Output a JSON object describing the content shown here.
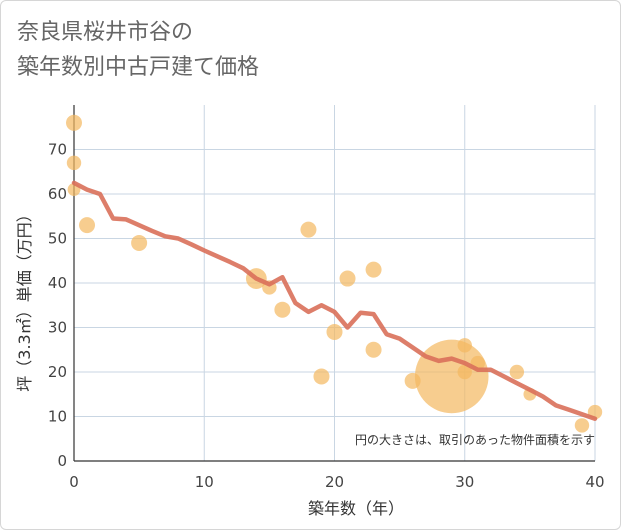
{
  "title_line1": "奈良県桜井市谷の",
  "title_line2": "築年数別中古戸建て価格",
  "chart_data": {
    "type": "scatter",
    "xlabel": "築年数（年）",
    "ylabel": "坪（3.3㎡）単価（万円）",
    "xlim": [
      0,
      40
    ],
    "ylim": [
      0,
      80
    ],
    "xticks": [
      "0",
      "10",
      "20",
      "30",
      "40"
    ],
    "yticks": [
      "0",
      "10",
      "20",
      "30",
      "40",
      "50",
      "60",
      "70"
    ],
    "grid": true,
    "note": "円の大きさは、取引のあった物件面積を示す",
    "colors": {
      "point": "#f4b860",
      "line": "#d9705a",
      "grid": "#c9d6e3"
    },
    "points": [
      {
        "x": 0,
        "y": 76,
        "size": 1.0
      },
      {
        "x": 0,
        "y": 67,
        "size": 0.9
      },
      {
        "x": 0,
        "y": 61,
        "size": 0.8
      },
      {
        "x": 1,
        "y": 53,
        "size": 1.0
      },
      {
        "x": 5,
        "y": 49,
        "size": 1.0
      },
      {
        "x": 14,
        "y": 41,
        "size": 1.3
      },
      {
        "x": 15,
        "y": 39,
        "size": 0.9
      },
      {
        "x": 16,
        "y": 34,
        "size": 1.0
      },
      {
        "x": 18,
        "y": 52,
        "size": 1.0
      },
      {
        "x": 19,
        "y": 19,
        "size": 1.0
      },
      {
        "x": 20,
        "y": 29,
        "size": 1.0
      },
      {
        "x": 21,
        "y": 41,
        "size": 1.0
      },
      {
        "x": 23,
        "y": 43,
        "size": 1.0
      },
      {
        "x": 23,
        "y": 25,
        "size": 1.0
      },
      {
        "x": 26,
        "y": 18,
        "size": 1.0
      },
      {
        "x": 29,
        "y": 19,
        "size": 4.6
      },
      {
        "x": 30,
        "y": 26,
        "size": 0.9
      },
      {
        "x": 30,
        "y": 20,
        "size": 0.9
      },
      {
        "x": 31,
        "y": 22,
        "size": 0.9
      },
      {
        "x": 34,
        "y": 20,
        "size": 0.9
      },
      {
        "x": 35,
        "y": 15,
        "size": 0.8
      },
      {
        "x": 39,
        "y": 8,
        "size": 0.9
      },
      {
        "x": 40,
        "y": 11,
        "size": 0.9
      }
    ],
    "series": [
      {
        "type": "line",
        "x": [
          0,
          1,
          2,
          3,
          4,
          5,
          6,
          7,
          8,
          9,
          10,
          11,
          12,
          13,
          14,
          15,
          16,
          17,
          18,
          19,
          20,
          21,
          22,
          23,
          24,
          25,
          26,
          27,
          28,
          29,
          30,
          31,
          32,
          33,
          34,
          35,
          36,
          37,
          38,
          39,
          40
        ],
        "y": [
          62.5,
          61,
          60,
          54.5,
          54.3,
          53,
          51.7,
          50.5,
          50,
          48.7,
          47.3,
          46,
          44.7,
          43.3,
          41,
          39.7,
          41.3,
          35.5,
          33.5,
          35,
          33.5,
          30,
          33.3,
          33,
          28.5,
          27.5,
          25.5,
          23.5,
          22.5,
          23,
          22,
          20.5,
          20.5,
          19,
          17.5,
          16,
          14.5,
          12.5,
          11.5,
          10.5,
          9.5
        ]
      }
    ]
  }
}
